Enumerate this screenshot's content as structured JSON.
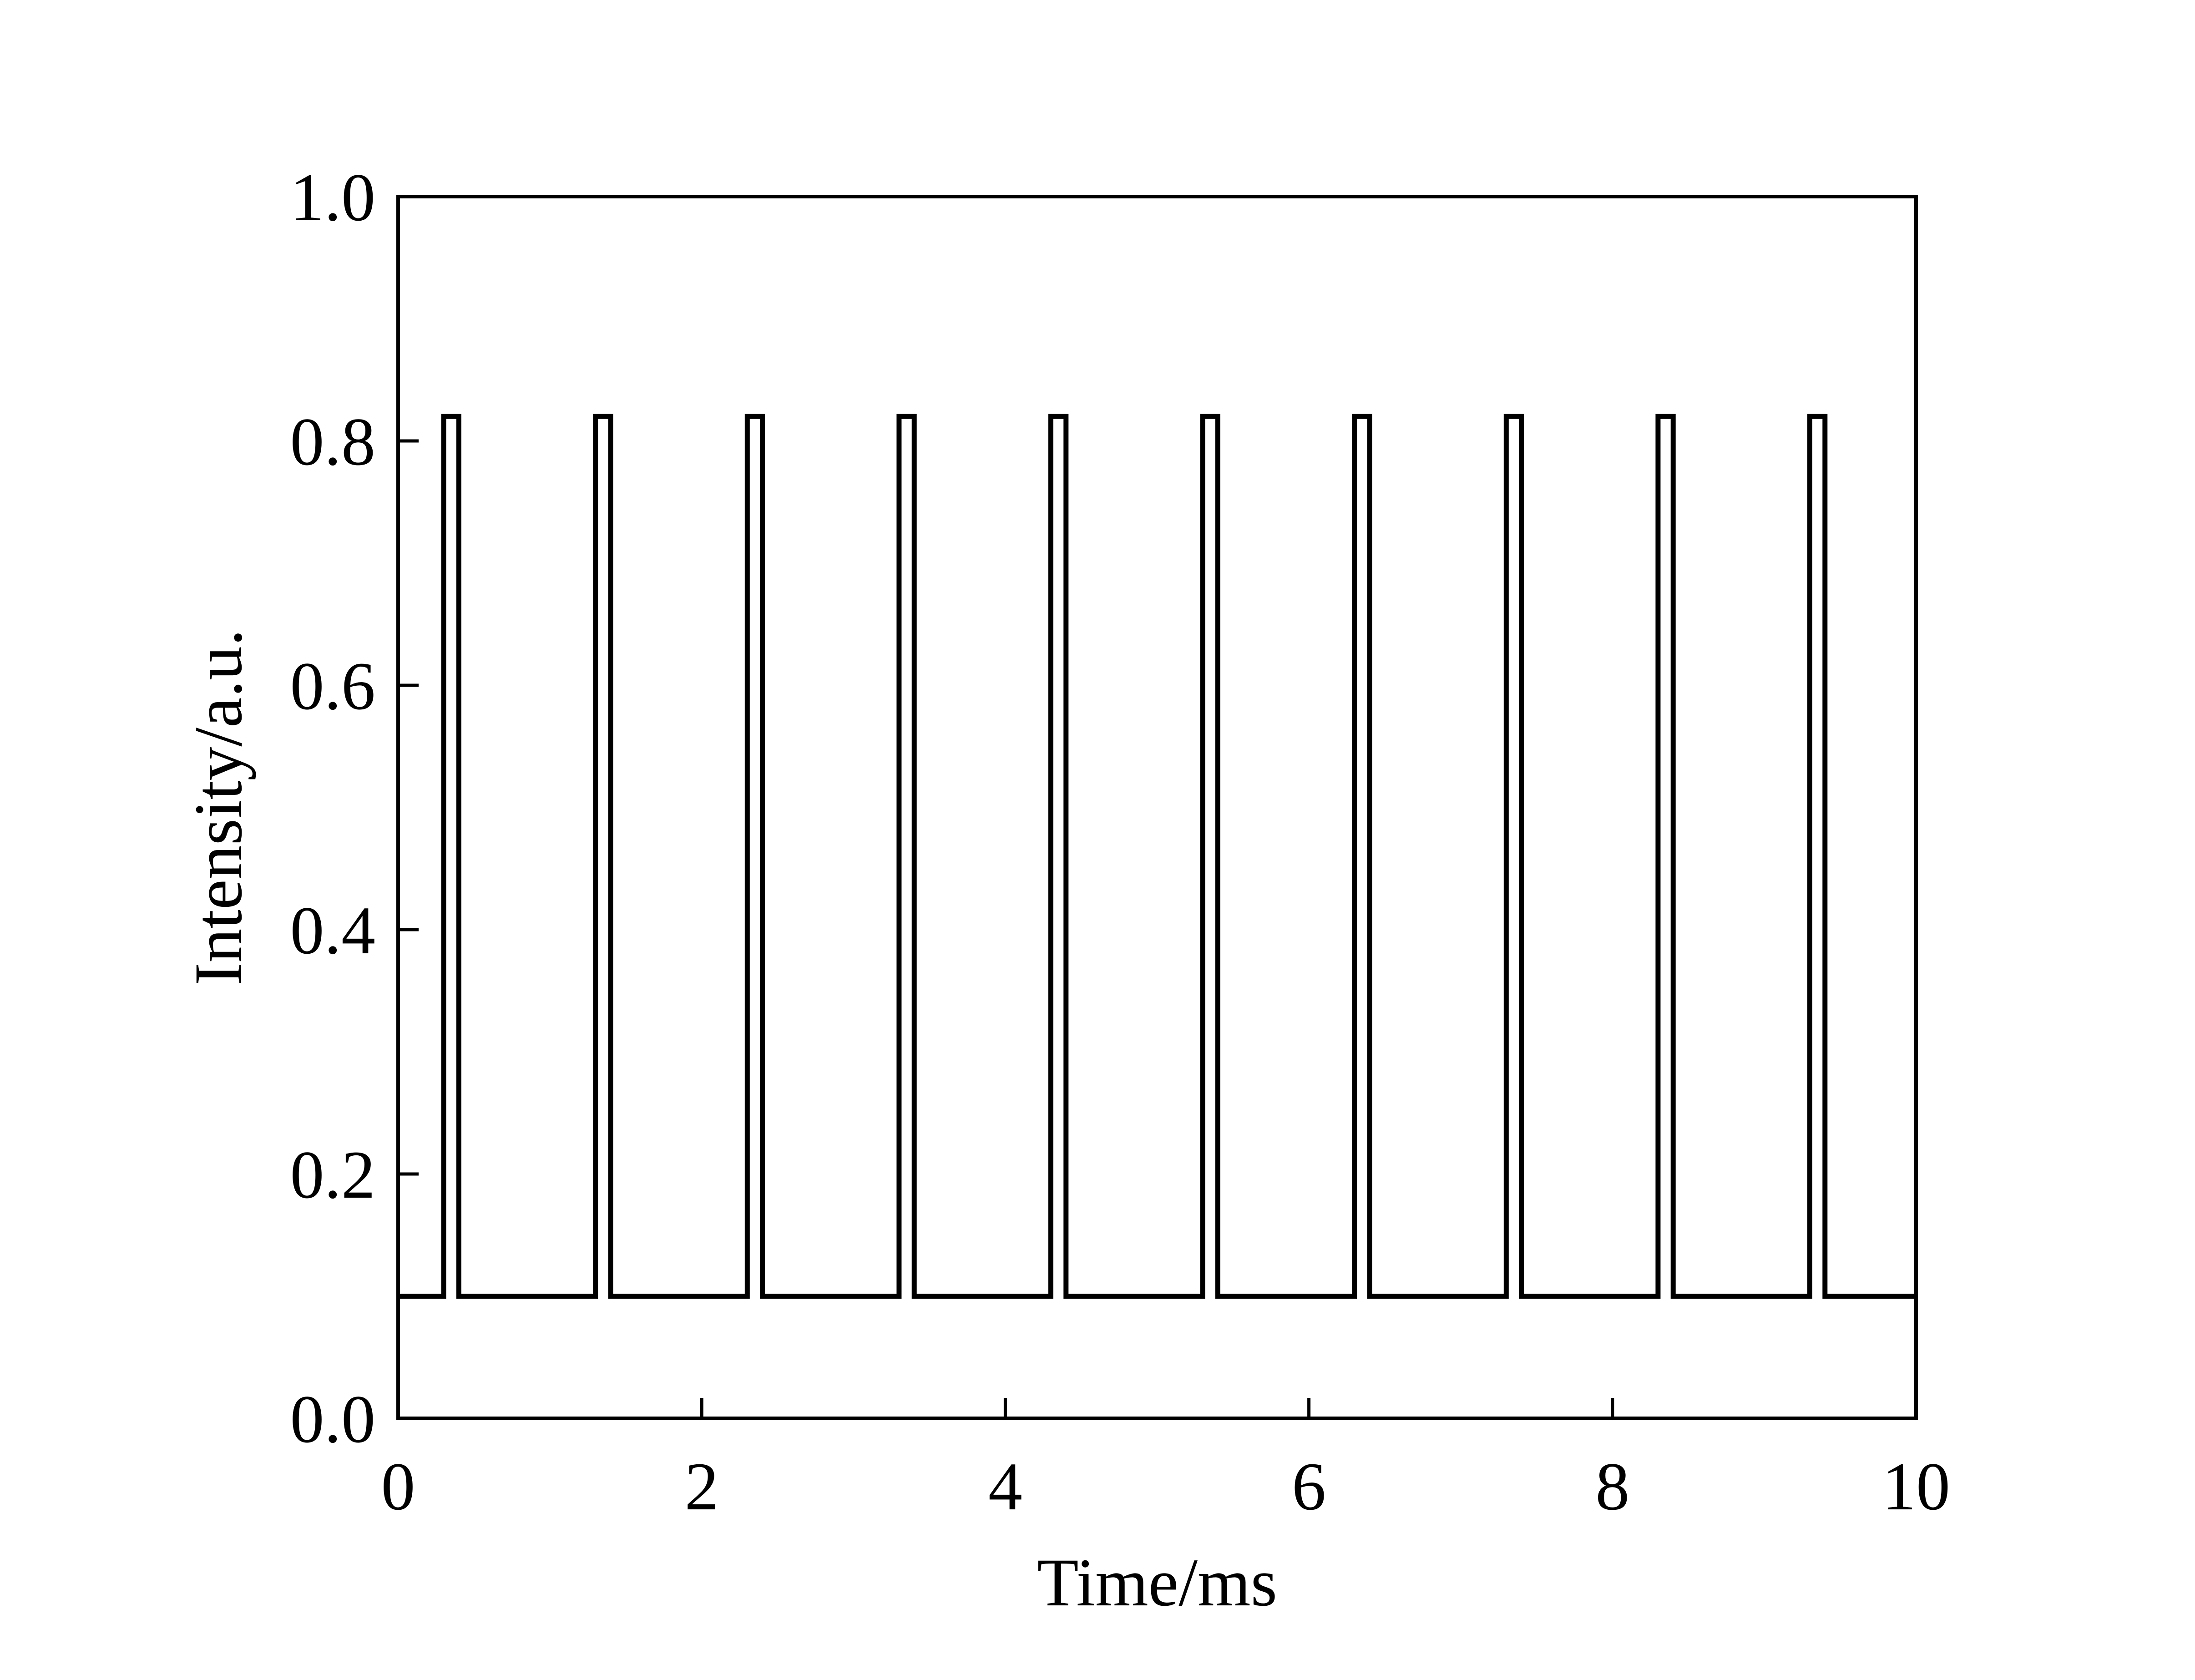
{
  "chart_data": {
    "type": "line",
    "title": "",
    "xlabel": "Time/ms",
    "ylabel": "Intensity/a.u.",
    "xlim": [
      0,
      10
    ],
    "ylim": [
      0.0,
      1.0
    ],
    "x_ticks": [
      "0",
      "2",
      "4",
      "6",
      "8",
      "10"
    ],
    "y_ticks": [
      "0.0",
      "0.2",
      "0.4",
      "0.6",
      "0.8",
      "1.0"
    ],
    "grid": false,
    "legend": "none",
    "line_color": "#000000",
    "baseline": 0.1,
    "series": [
      {
        "x": [
          0,
          0.3,
          0.3,
          0.4,
          0.4,
          1.3,
          1.3,
          1.4,
          1.4,
          2.3,
          2.3,
          2.4,
          2.4,
          3.3,
          3.3,
          3.4,
          3.4,
          4.3,
          4.3,
          4.4,
          4.4,
          5.3,
          5.3,
          5.4,
          5.4,
          6.3,
          6.3,
          6.4,
          6.4,
          7.3,
          7.3,
          7.4,
          7.4,
          8.3,
          8.3,
          8.4,
          8.4,
          9.3,
          9.3,
          9.4,
          9.4,
          10
        ],
        "y": [
          0.1,
          0.1,
          0.82,
          0.82,
          0.1,
          0.1,
          0.82,
          0.82,
          0.1,
          0.1,
          0.82,
          0.82,
          0.1,
          0.1,
          0.82,
          0.82,
          0.1,
          0.1,
          0.82,
          0.82,
          0.1,
          0.1,
          0.82,
          0.82,
          0.1,
          0.1,
          0.82,
          0.82,
          0.1,
          0.1,
          0.82,
          0.82,
          0.1,
          0.1,
          0.82,
          0.82,
          0.1,
          0.1,
          0.82,
          0.82,
          0.1,
          0.1
        ]
      }
    ]
  }
}
